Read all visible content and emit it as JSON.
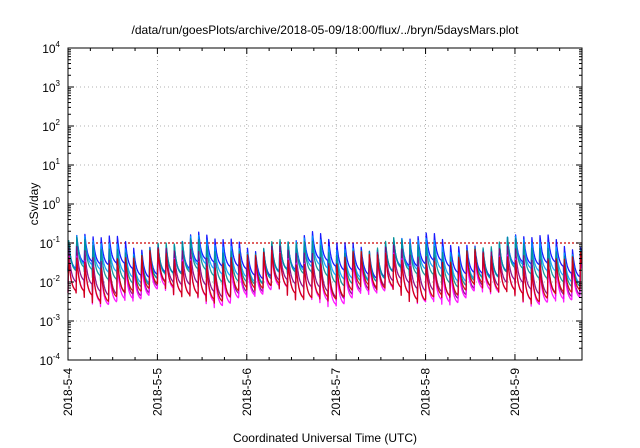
{
  "chart_data": {
    "type": "line",
    "title": "/data/run/goesPlots/archive/2018-05-09/18:00/flux/../bryn/5daysMars.plot",
    "xlabel": "Coordinated Universal Time (UTC)",
    "ylabel": "cSv/day",
    "yscale": "log",
    "ylim": [
      0.0001,
      10000
    ],
    "y_ticks": [
      {
        "base": "10",
        "exp": "-4",
        "value": 0.0001
      },
      {
        "base": "10",
        "exp": "-3",
        "value": 0.001
      },
      {
        "base": "10",
        "exp": "-2",
        "value": 0.01
      },
      {
        "base": "10",
        "exp": "-1",
        "value": 0.1
      },
      {
        "base": "10",
        "exp": "0",
        "value": 1
      },
      {
        "base": "10",
        "exp": "1",
        "value": 10
      },
      {
        "base": "10",
        "exp": "2",
        "value": 100
      },
      {
        "base": "10",
        "exp": "3",
        "value": 1000
      },
      {
        "base": "10",
        "exp": "4",
        "value": 10000
      }
    ],
    "xlim": [
      "2018-05-04",
      "2018-05-09T18:00"
    ],
    "x_ticks": [
      "2018-5-4",
      "2018-5-5",
      "2018-5-6",
      "2018-5-7",
      "2018-5-8",
      "2018-5-9"
    ],
    "grid": true,
    "reference_line": {
      "value": 0.1,
      "color": "#cc0000"
    },
    "series": [
      {
        "color": "#0000ff",
        "range": [
          0.02,
          0.11
        ]
      },
      {
        "color": "#00a0ff",
        "range": [
          0.015,
          0.09
        ]
      },
      {
        "color": "#009090",
        "range": [
          0.012,
          0.08
        ]
      },
      {
        "color": "#800080",
        "range": [
          0.006,
          0.05
        ]
      },
      {
        "color": "#ff00ff",
        "range": [
          0.004,
          0.035
        ]
      },
      {
        "color": "#cc0000",
        "range": [
          0.005,
          0.04
        ]
      }
    ]
  }
}
